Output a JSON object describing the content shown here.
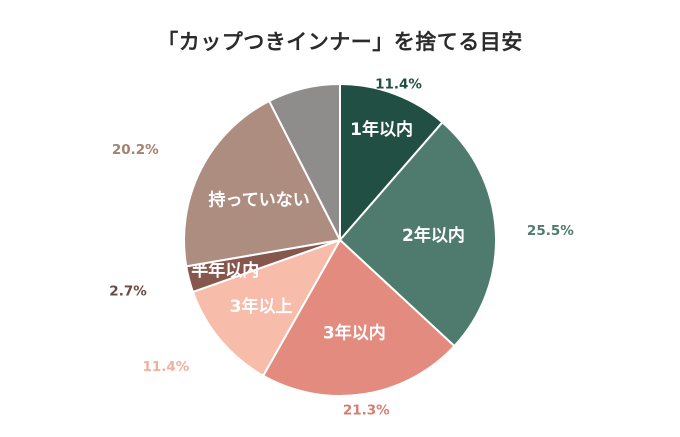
{
  "chart_data": {
    "type": "pie",
    "title": "「カップつきインナー」を捨てる目安",
    "slices": [
      {
        "label": "1年以内",
        "value": 11.4,
        "value_label": "11.4%",
        "color": "#214f43",
        "value_color": "#214f43"
      },
      {
        "label": "2年以内",
        "value": 25.5,
        "value_label": "25.5%",
        "color": "#4f7b6e",
        "value_color": "#4f7b6e"
      },
      {
        "label": "3年以内",
        "value": 21.3,
        "value_label": "21.3%",
        "color": "#e38b7f",
        "value_color": "#d57f70"
      },
      {
        "label": "3年以上",
        "value": 11.4,
        "value_label": "11.4%",
        "color": "#f7bcaa",
        "value_color": "#efb19d"
      },
      {
        "label": "半年以内",
        "value": 2.7,
        "value_label": "2.7%",
        "color": "#86584d",
        "value_color": "#6b4a40"
      },
      {
        "label": "持っていない",
        "value": 20.2,
        "value_label": "20.2%",
        "color": "#ae8d81",
        "value_color": "#a58172"
      },
      {
        "label": "",
        "value": 7.5,
        "value_label": "",
        "color": "#8f8d8b",
        "value_color": "#8f8d8b"
      }
    ]
  }
}
